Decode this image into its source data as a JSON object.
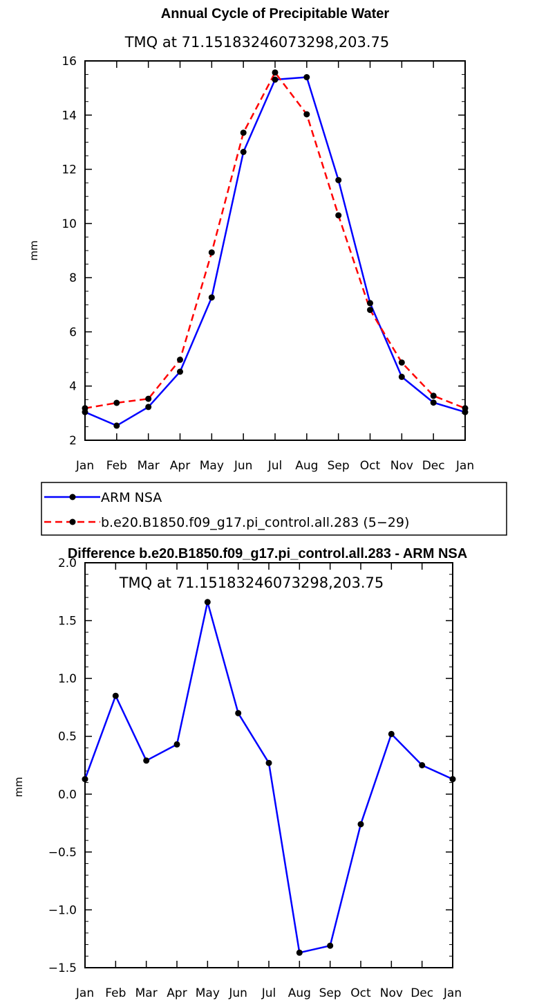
{
  "chart_data": [
    {
      "type": "line",
      "title": "Annual Cycle of Precipitable Water",
      "subtitle": "TMQ at 71.15183246073298,203.75",
      "xlabel": "",
      "ylabel": "mm",
      "categories": [
        "Jan",
        "Feb",
        "Mar",
        "Apr",
        "May",
        "Jun",
        "Jul",
        "Aug",
        "Sep",
        "Oct",
        "Nov",
        "Dec",
        "Jan"
      ],
      "ylim": [
        2,
        16
      ],
      "yticks": [
        "2",
        "4",
        "6",
        "8",
        "10",
        "12",
        "14",
        "16"
      ],
      "grid": false,
      "legend": "bottom",
      "series": [
        {
          "name": "ARM NSA",
          "color": "#0000ff",
          "dash": "solid",
          "values": [
            3.04,
            2.54,
            3.23,
            4.53,
            7.27,
            12.64,
            15.31,
            15.4,
            11.6,
            7.06,
            4.34,
            3.39,
            3.04
          ]
        },
        {
          "name": "b.e20.B1850.f09_g17.pi_control.all.283 (5−29)",
          "color": "#ff0000",
          "dash": "dashed",
          "values": [
            3.18,
            3.38,
            3.53,
            4.97,
            8.93,
            13.35,
            15.57,
            14.03,
            10.3,
            6.81,
            4.87,
            3.64,
            3.18
          ]
        }
      ]
    },
    {
      "type": "line",
      "title": "Difference b.e20.B1850.f09_g17.pi_control.all.283 - ARM NSA",
      "subtitle": "TMQ at 71.15183246073298,203.75",
      "xlabel": "",
      "ylabel": "mm",
      "categories": [
        "Jan",
        "Feb",
        "Mar",
        "Apr",
        "May",
        "Jun",
        "Jul",
        "Aug",
        "Sep",
        "Oct",
        "Nov",
        "Dec",
        "Jan"
      ],
      "ylim": [
        -1.5,
        2.0
      ],
      "yticks": [
        "−1.5",
        "−1.0",
        "−0.5",
        "0.0",
        "0.5",
        "1.0",
        "1.5",
        "2.0"
      ],
      "grid": false,
      "series": [
        {
          "name": "",
          "color": "#0000ff",
          "dash": "solid",
          "values": [
            0.13,
            0.85,
            0.29,
            0.43,
            1.66,
            0.7,
            0.27,
            -1.37,
            -1.31,
            -0.26,
            0.52,
            0.25,
            0.13
          ]
        }
      ]
    }
  ]
}
